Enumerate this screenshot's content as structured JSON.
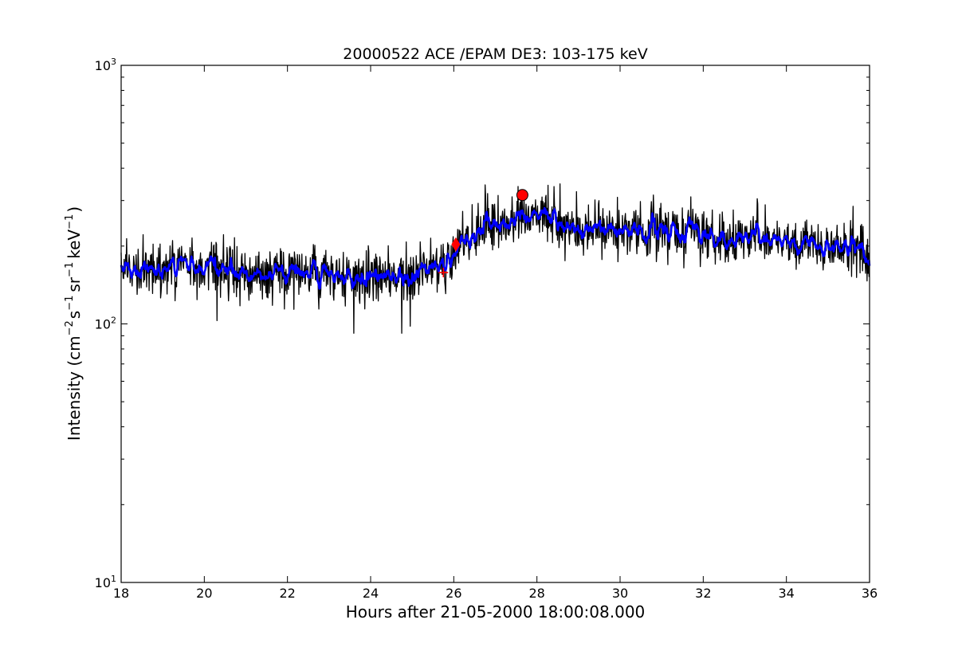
{
  "chart_data": {
    "type": "line",
    "title": "20000522 ACE /EPAM DE3: 103-175 keV",
    "xlabel": "Hours after 21-05-2000 18:00:08.000",
    "ylabel": {
      "prefix": "Intensity (cm",
      "exp1": "−2",
      "part2": "s",
      "exp2": "−1",
      "part3": "sr",
      "exp3": "−1",
      "part4": "keV",
      "exp4": "−1",
      "suffix": ")"
    },
    "xlim": [
      18,
      36
    ],
    "ylim": [
      10,
      1000
    ],
    "yscale": "log",
    "grid": false,
    "x_ticks": [
      18,
      20,
      22,
      24,
      26,
      28,
      30,
      32,
      34,
      36
    ],
    "y_ticks": [
      {
        "value": 10,
        "base": "10",
        "exp": "1"
      },
      {
        "value": 100,
        "base": "10",
        "exp": "2"
      },
      {
        "value": 1000,
        "base": "10",
        "exp": "3"
      }
    ],
    "series": [
      {
        "style": "raw",
        "color": "#000000",
        "x_start": 18,
        "x_end": 36,
        "n_points": 1500,
        "trend": [
          [
            18,
            165
          ],
          [
            21,
            160
          ],
          [
            24.2,
            150
          ],
          [
            25.8,
            165
          ],
          [
            26.4,
            225
          ],
          [
            27.7,
            262
          ],
          [
            29,
            235
          ],
          [
            32,
            225
          ],
          [
            34,
            205
          ],
          [
            36,
            195
          ]
        ],
        "scatter_factor": 1.25,
        "dips": [
          [
            23.6,
            92
          ],
          [
            24.75,
            92
          ],
          [
            24.95,
            98
          ],
          [
            20.3,
            103
          ]
        ],
        "spikes": [
          [
            26.75,
            345
          ],
          [
            27.55,
            340
          ],
          [
            28.55,
            348
          ],
          [
            31.7,
            310
          ],
          [
            33.3,
            305
          ],
          [
            35.6,
            285
          ]
        ]
      },
      {
        "style": "smoothed",
        "color": "#0000ff",
        "smoothing_window": 7
      }
    ],
    "markers": [
      {
        "type": "plus",
        "x": 25.75,
        "y": 158,
        "color": "#ff0000"
      },
      {
        "type": "diamond",
        "x": 26.05,
        "y": 203,
        "color": "#ff0000"
      },
      {
        "type": "circle",
        "x": 27.65,
        "y": 315,
        "color": "#ff0000"
      }
    ]
  }
}
